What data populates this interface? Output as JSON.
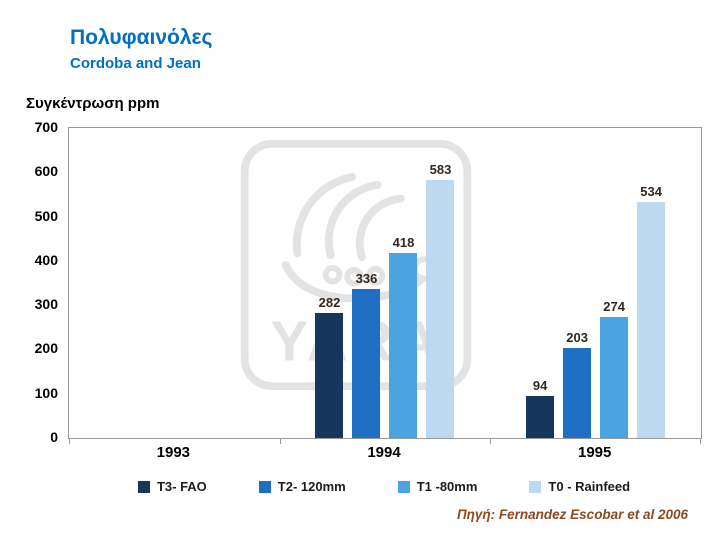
{
  "title": "Πολυφαινόλες",
  "subtitle": "Cordoba and Jean",
  "y_axis_label": "Συγκέντρωση ppm",
  "source": "Πηγή: Fernandez Escobar et al 2006",
  "watermark": "YARA",
  "colors": {
    "title": "#0070C0",
    "source_text": "#8C4B21",
    "bar_value_labels": "#33261D",
    "axis_text": "#000000",
    "plot_border": "#9A9A9A",
    "watermark_gray": "#E3E3E3"
  },
  "chart_data": {
    "type": "bar",
    "title": "Πολυφαινόλες — Cordoba and Jean",
    "xlabel": "",
    "ylabel": "Συγκέντρωση ppm",
    "categories": [
      "1993",
      "1994",
      "1995"
    ],
    "series": [
      {
        "name": "T3- FAO",
        "color": "#17365D",
        "values": [
          null,
          282,
          94
        ]
      },
      {
        "name": "T2- 120mm",
        "color": "#1F6FC5",
        "values": [
          null,
          336,
          203
        ]
      },
      {
        "name": "T1 -80mm",
        "color": "#4BA3DF",
        "values": [
          null,
          418,
          274
        ]
      },
      {
        "name": "T0 - Rainfeed",
        "color": "#BDD9F2",
        "values": [
          null,
          583,
          534
        ]
      }
    ],
    "ylim": [
      0,
      700
    ],
    "ytick_step": 100,
    "grid": false,
    "legend_position": "bottom",
    "data_labels": true
  }
}
